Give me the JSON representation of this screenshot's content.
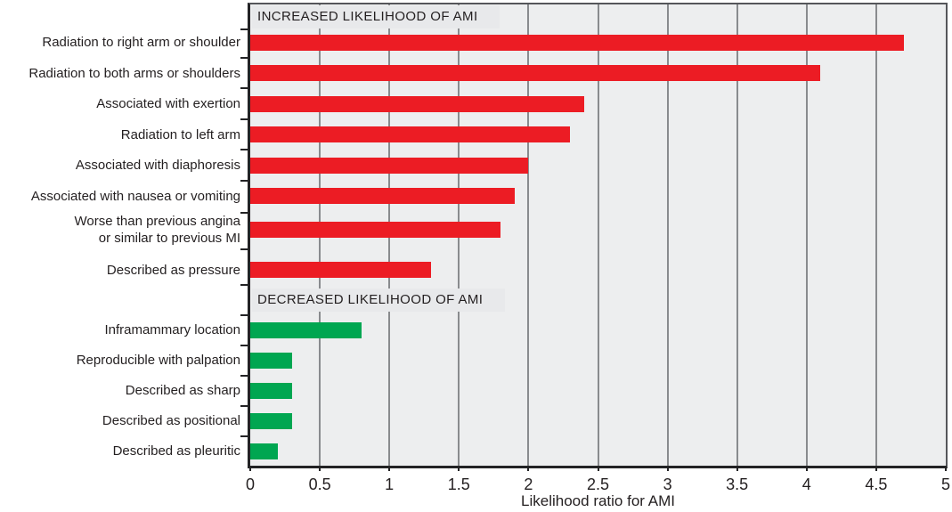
{
  "chart_data": {
    "type": "bar",
    "orientation": "horizontal",
    "title": "",
    "xlabel": "Likelihood ratio for AMI",
    "ylabel": "",
    "xlim": [
      0,
      5
    ],
    "x_tick_step": 0.5,
    "x_ticks": [
      "0",
      "0.5",
      "1",
      "1.5",
      "2",
      "2.5",
      "3",
      "3.5",
      "4",
      "4.5",
      "5"
    ],
    "grid": "vertical",
    "legend": "none",
    "sections": [
      {
        "header": "INCREASED LIKELIHOOD OF AMI",
        "bar_color_key": "increase_bar",
        "bars": [
          {
            "label": "Radiation to right arm or shoulder",
            "value": 4.7
          },
          {
            "label": "Radiation to both arms or shoulders",
            "value": 4.1
          },
          {
            "label": "Associated with exertion",
            "value": 2.4
          },
          {
            "label": "Radiation to left arm",
            "value": 2.3
          },
          {
            "label": "Associated with diaphoresis",
            "value": 2.0
          },
          {
            "label": "Associated with nausea or vomiting",
            "value": 1.9
          },
          {
            "label": "Worse than previous angina\nor similar to previous MI",
            "value": 1.8
          },
          {
            "label": "Described as pressure",
            "value": 1.3
          }
        ]
      },
      {
        "header": "DECREASED LIKELIHOOD OF AMI",
        "bar_color_key": "decrease_bar",
        "bars": [
          {
            "label": "Inframammary location",
            "value": 0.8
          },
          {
            "label": "Reproducible with palpation",
            "value": 0.3
          },
          {
            "label": "Described as sharp",
            "value": 0.3
          },
          {
            "label": "Described as positional",
            "value": 0.3
          },
          {
            "label": "Described as pleuritic",
            "value": 0.2
          }
        ]
      }
    ],
    "colors": {
      "increase_bar": "#ec1c24",
      "decrease_bar": "#00a651",
      "plot_background": "#edeeef",
      "header_box": "#e8e9eb",
      "gridline": "#898b8e",
      "axis": "#232325",
      "text": "#231f20"
    }
  }
}
